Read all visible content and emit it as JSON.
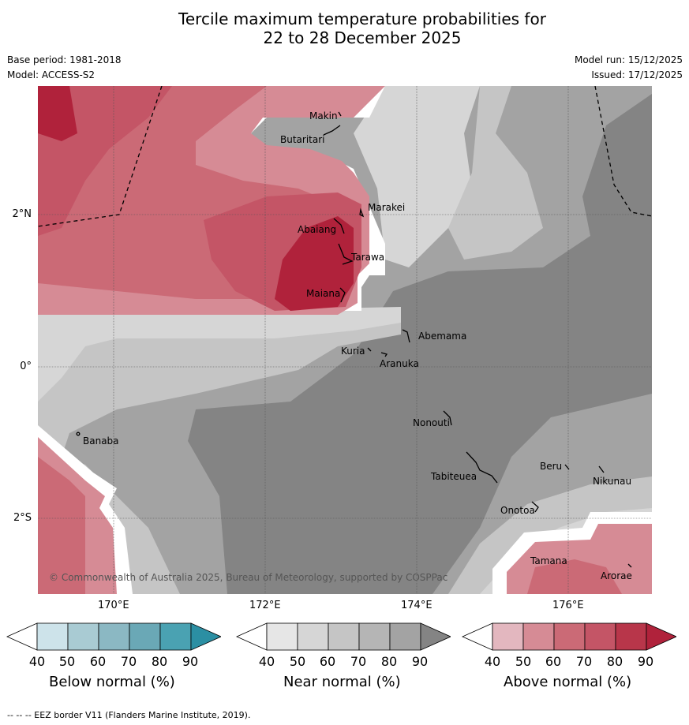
{
  "title_line1": "Tercile maximum temperature probabilities for",
  "title_line2": "22 to 28 December 2025",
  "base_period": "Base period: 1981-2018",
  "model": "Model: ACCESS-S2",
  "model_run": "Model run: 15/12/2025",
  "issued": "Issued: 17/12/2025",
  "copyright": "© Commonwealth of Australia 2025, Bureau of Meteorology, supported by COSPPac",
  "footer": "--  --  -- EEZ border V11 (Flanders Marine Institute, 2019).",
  "lat_labels": [
    "2°N",
    "0°",
    "2°S"
  ],
  "lon_labels": [
    "170°E",
    "172°E",
    "174°E",
    "176°E"
  ],
  "places": [
    "Makin",
    "Butaritari",
    "Marakei",
    "Abaiang",
    "Tarawa",
    "Maiana",
    "Abemama",
    "Kuria",
    "Aranuka",
    "Nonouti",
    "Banaba",
    "Tabiteuea",
    "Beru",
    "Nikunau",
    "Onotoa",
    "Tamana",
    "Arorae"
  ],
  "colorbars": [
    {
      "title": "Below normal (%)",
      "ticks": [
        "40",
        "50",
        "60",
        "70",
        "80",
        "90"
      ],
      "colors": [
        "#ffffff",
        "#cde3ea",
        "#a9cbd3",
        "#8bb8c3",
        "#6aa8b6",
        "#4aa2b2",
        "#2b8fa3"
      ]
    },
    {
      "title": "Near normal (%)",
      "ticks": [
        "40",
        "50",
        "60",
        "70",
        "80",
        "90"
      ],
      "colors": [
        "#ffffff",
        "#e6e6e6",
        "#d6d6d6",
        "#c5c5c5",
        "#b5b5b5",
        "#a3a3a3",
        "#848484"
      ]
    },
    {
      "title": "Above normal (%)",
      "ticks": [
        "40",
        "50",
        "60",
        "70",
        "80",
        "90"
      ],
      "colors": [
        "#ffffff",
        "#e3b7bf",
        "#d68b95",
        "#cb6a76",
        "#c45566",
        "#b8364a",
        "#b0223b"
      ]
    }
  ]
}
